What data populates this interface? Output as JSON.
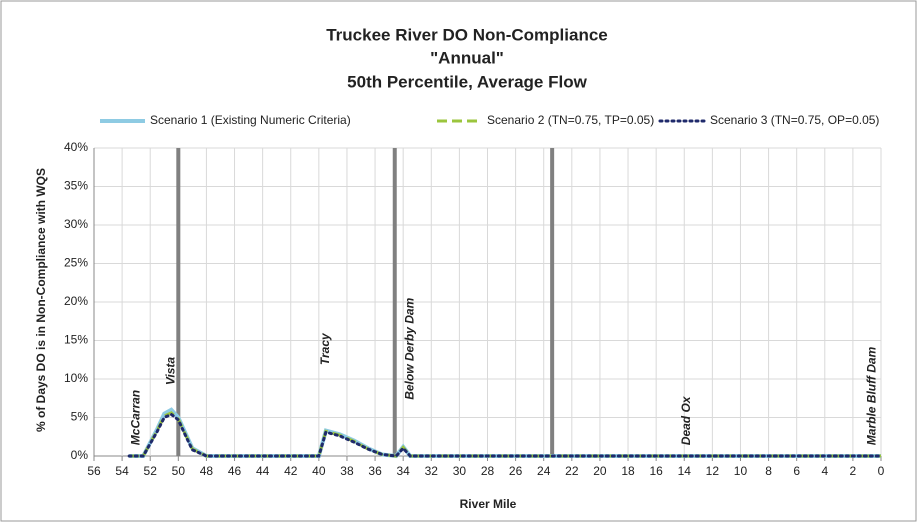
{
  "chart_data": {
    "type": "line",
    "title": [
      "Truckee River DO Non-Compliance",
      "\"Annual\"",
      "50th Percentile, Average Flow"
    ],
    "xlabel": "River Mile",
    "ylabel": "% of Days DO is in Non-Compliance with WQS",
    "x": [
      53.5,
      52.5,
      51.5,
      51,
      50.5,
      50,
      49.5,
      49,
      48,
      40,
      39.5,
      38.5,
      37.5,
      36.5,
      35.5,
      34.5,
      34,
      33.5,
      33,
      0
    ],
    "series": [
      {
        "name": "Scenario 1 (Existing Numeric Criteria)",
        "color": "#8ecbe3",
        "style": "solid",
        "values": [
          0,
          0,
          3.5,
          5.5,
          6,
          5,
          3,
          1,
          0,
          0,
          3.3,
          2.8,
          2,
          1,
          0.2,
          0,
          1.2,
          0,
          0,
          0
        ]
      },
      {
        "name": "Scenario 2 (TN=0.75, TP=0.05)",
        "color": "#9bc53d",
        "style": "dashed",
        "values": [
          0,
          0,
          3.3,
          5.2,
          5.6,
          4.8,
          2.8,
          0.9,
          0,
          0,
          3.2,
          2.7,
          1.9,
          0.9,
          0.2,
          0,
          1.1,
          0,
          0,
          0
        ]
      },
      {
        "name": "Scenario 3 (TN=0.75, OP=0.05)",
        "color": "#1f2a6b",
        "style": "dotted",
        "values": [
          0,
          0,
          3.2,
          5,
          5.4,
          4.7,
          2.7,
          0.8,
          0,
          0,
          3.1,
          2.6,
          1.8,
          0.9,
          0.2,
          0,
          1,
          0,
          0,
          0
        ]
      }
    ],
    "xlim": [
      56,
      0
    ],
    "xticks": [
      56,
      54,
      52,
      50,
      48,
      46,
      44,
      42,
      40,
      38,
      36,
      34,
      32,
      30,
      28,
      26,
      24,
      22,
      20,
      18,
      16,
      14,
      12,
      10,
      8,
      6,
      4,
      2,
      0
    ],
    "ylim": [
      0,
      40
    ],
    "yticks": [
      {
        "value": 0,
        "label": "0%"
      },
      {
        "value": 5,
        "label": "5%"
      },
      {
        "value": 10,
        "label": "10%"
      },
      {
        "value": 15,
        "label": "15%"
      },
      {
        "value": 20,
        "label": "20%"
      },
      {
        "value": 25,
        "label": "25%"
      },
      {
        "value": 30,
        "label": "30%"
      },
      {
        "value": 35,
        "label": "35%"
      },
      {
        "value": 40,
        "label": "40%"
      }
    ],
    "grid": true,
    "vlines": [
      50,
      34.6,
      23.4
    ],
    "annotations": [
      {
        "text": "McCarran",
        "x": 53,
        "y": 1.4
      },
      {
        "text": "Vista",
        "x": 50.5,
        "y": 9.2
      },
      {
        "text": "Tracy",
        "x": 39.5,
        "y": 11.8
      },
      {
        "text": "Below Derby Dam",
        "x": 33.5,
        "y": 7.3
      },
      {
        "text": "Dead Ox",
        "x": 13.8,
        "y": 1.4
      },
      {
        "text": "Marble Bluff Dam",
        "x": 0.6,
        "y": 1.4
      }
    ]
  }
}
